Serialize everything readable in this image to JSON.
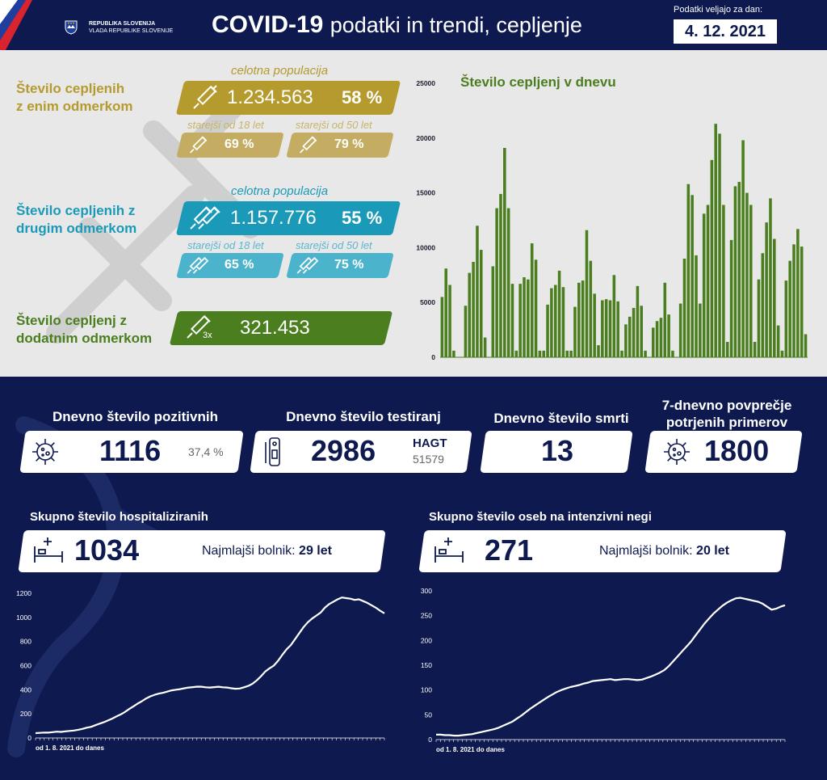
{
  "header": {
    "gov_line1": "REPUBLIKA SLOVENIJA",
    "gov_line2": "VLADA REPUBLIKE SLOVENIJE",
    "title_bold": "COVID-19",
    "title_rest": "podatki in trendi, cepljenje",
    "date_label": "Podatki veljajo za dan:",
    "date": "4. 12. 2021"
  },
  "vaccination": {
    "first_dose": {
      "label_line1": "Število cepljenih",
      "label_line2": "z enim odmerkom",
      "population_label": "celotna populacija",
      "total": "1.234.563",
      "total_pct": "58 %",
      "age18_label": "starejši od 18 let",
      "age18_pct": "69 %",
      "age50_label": "starejši od 50 let",
      "age50_pct": "79 %"
    },
    "second_dose": {
      "label_line1": "Število cepljenih z",
      "label_line2": "drugim odmerkom",
      "population_label": "celotna populacija",
      "total": "1.157.776",
      "total_pct": "55 %",
      "age18_label": "starejši od 18 let",
      "age18_pct": "65 %",
      "age50_label": "starejši od 50 let",
      "age50_pct": "75 %"
    },
    "booster": {
      "label_line1": "Število cepljenj z",
      "label_line2": "dodatnim odmerkom",
      "icon_mark": "3x",
      "total": "321.453"
    }
  },
  "colors": {
    "navy": "#0e1a4f",
    "gold": "#b59a2e",
    "teal": "#1a9ab8",
    "green": "#4a7e1e",
    "light_grey": "#e8e8e8"
  },
  "stats": {
    "positive": {
      "label": "Dnevno število pozitivnih",
      "value": "1116",
      "pct": "37,4 %",
      "icon": "virus-icon"
    },
    "tests": {
      "label": "Dnevno število testiranj",
      "value": "2986",
      "hagt_label": "HAGT",
      "hagt_value": "51579",
      "icon": "test-kit-icon"
    },
    "deaths": {
      "label": "Dnevno število smrti",
      "value": "13"
    },
    "avg7": {
      "label_line1": "7-dnevno povprečje",
      "label_line2": "potrjenih primerov",
      "value": "1800",
      "icon": "virus-icon"
    }
  },
  "hospital": {
    "label": "Skupno število hospitaliziranih",
    "value": "1034",
    "youngest_label": "Najmlajši bolnik:",
    "youngest_value": "29 let",
    "icon": "hospital-bed-icon",
    "x_note": "od 1. 8. 2021 do danes"
  },
  "icu": {
    "label": "Skupno število oseb na intenzivni negi",
    "value": "271",
    "youngest_label": "Najmlajši bolnik:",
    "youngest_value": "20 let",
    "icon": "hospital-bed-icon",
    "x_note": "od 1. 8. 2021 do danes"
  },
  "chart_data": [
    {
      "type": "bar",
      "title": "Število cepljenj v dnevu",
      "ylim": [
        0,
        25000
      ],
      "yticks": [
        0,
        5000,
        10000,
        15000,
        20000,
        25000
      ],
      "color": "#4a7e1e",
      "values": [
        5500,
        8100,
        6600,
        600,
        0,
        0,
        4700,
        7700,
        8700,
        12000,
        9800,
        1800,
        0,
        8300,
        13600,
        14900,
        19100,
        13600,
        6700,
        600,
        6700,
        7300,
        7100,
        10400,
        8900,
        600,
        600,
        4800,
        6300,
        6600,
        7900,
        6400,
        600,
        600,
        4600,
        6800,
        7000,
        11600,
        8800,
        5800,
        1100,
        5200,
        5300,
        5200,
        7500,
        5100,
        600,
        3000,
        3700,
        4500,
        6500,
        4700,
        600,
        0,
        2700,
        3300,
        3600,
        6800,
        3900,
        600,
        0,
        4900,
        9000,
        15800,
        14800,
        9300,
        4900,
        13100,
        13900,
        18000,
        21300,
        20400,
        13900,
        1400,
        10700,
        15600,
        16000,
        19800,
        15000,
        13900,
        1400,
        7100,
        9500,
        12300,
        14500,
        10800,
        2900,
        600,
        7000,
        8800,
        10300,
        11700,
        10100,
        2100
      ],
      "x_axis_labels": []
    },
    {
      "type": "line",
      "title": "Skupno število hospitaliziranih",
      "xlabel": "od 1. 8. 2021 do danes",
      "ylim": [
        0,
        1200
      ],
      "yticks": [
        0,
        200,
        400,
        600,
        800,
        1000,
        1200
      ],
      "color": "#ffffff",
      "values": [
        40,
        42,
        45,
        44,
        48,
        52,
        50,
        55,
        58,
        62,
        68,
        75,
        85,
        92,
        105,
        118,
        130,
        145,
        160,
        178,
        195,
        215,
        240,
        262,
        285,
        305,
        328,
        345,
        358,
        368,
        375,
        385,
        395,
        400,
        405,
        412,
        418,
        422,
        426,
        425,
        420,
        418,
        422,
        425,
        420,
        418,
        412,
        408,
        410,
        420,
        432,
        450,
        478,
        512,
        552,
        578,
        600,
        640,
        690,
        735,
        770,
        820,
        870,
        920,
        960,
        990,
        1015,
        1040,
        1080,
        1110,
        1130,
        1150,
        1165,
        1160,
        1155,
        1145,
        1150,
        1135,
        1120,
        1100,
        1080,
        1055,
        1034
      ]
    },
    {
      "type": "line",
      "title": "Skupno število oseb na intenzivni negi",
      "xlabel": "od 1. 8. 2021 do danes",
      "ylim": [
        0,
        300
      ],
      "yticks": [
        0,
        50,
        100,
        150,
        200,
        250,
        300
      ],
      "color": "#ffffff",
      "values": [
        10,
        10,
        9,
        9,
        8,
        8,
        9,
        10,
        11,
        13,
        15,
        17,
        19,
        21,
        24,
        28,
        32,
        36,
        42,
        48,
        55,
        62,
        68,
        74,
        80,
        86,
        91,
        96,
        100,
        103,
        106,
        108,
        110,
        113,
        115,
        118,
        119,
        120,
        121,
        122,
        120,
        121,
        122,
        122,
        121,
        120,
        121,
        124,
        127,
        131,
        135,
        140,
        148,
        158,
        168,
        178,
        188,
        198,
        210,
        222,
        234,
        244,
        254,
        262,
        270,
        276,
        281,
        285,
        286,
        284,
        282,
        280,
        278,
        274,
        268,
        262,
        264,
        268,
        271
      ]
    }
  ]
}
